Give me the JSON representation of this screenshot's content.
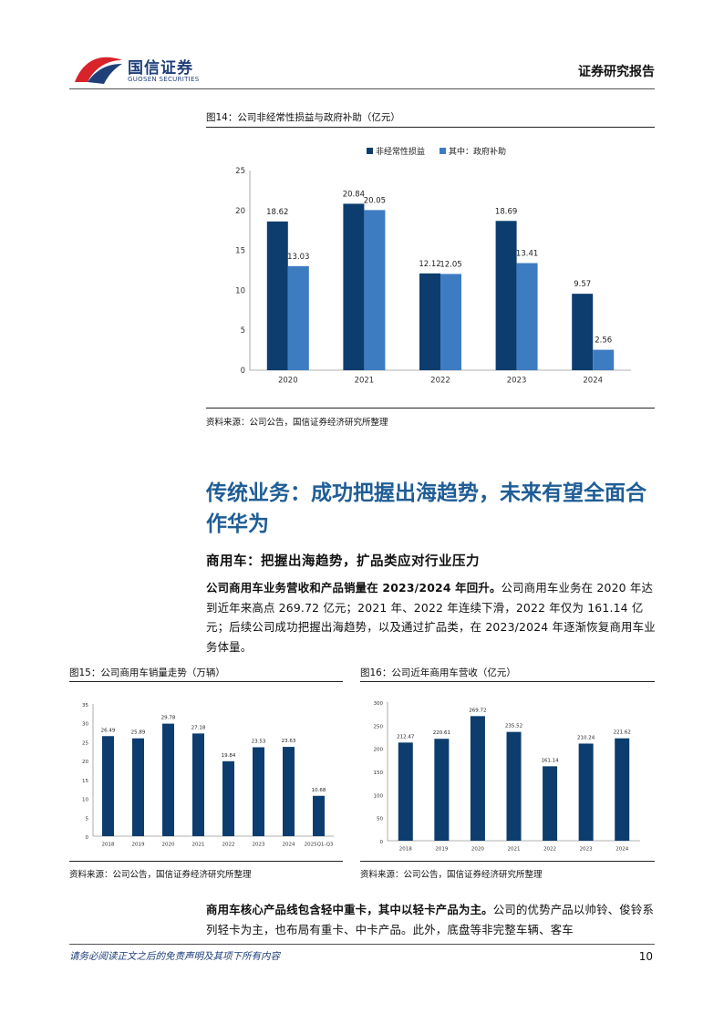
{
  "header": {
    "logo_cn": "国信证券",
    "logo_en": "GUOSEN SECURITIES",
    "report_type": "证券研究报告"
  },
  "fig14": {
    "title": "图14：公司非经常性损益与政府补助（亿元）",
    "source": "资料来源：公司公告，国信证券经济研究所整理"
  },
  "section": {
    "title": "传统业务：成功把握出海趋势，未来有望全面合作华为",
    "subhead": "商用车：把握出海趋势，扩品类应对行业压力"
  },
  "para1": {
    "lead": "公司商用车业务营收和产品销量在 2023/2024 年回升。",
    "body": "公司商用车业务在 2020 年达到近年来高点 269.72 亿元；2021 年、2022 年连续下滑，2022 年仅为 161.14 亿元；后续公司成功把握出海趋势，以及通过扩品类，在 2023/2024 年逐渐恢复商用车业务体量。"
  },
  "fig15": {
    "title": "图15：公司商用车销量走势（万辆）",
    "source": "资料来源：公司公告，国信证券经济研究所整理"
  },
  "fig16": {
    "title": "图16：公司近年商用车营收（亿元）",
    "source": "资料来源：公司公告，国信证券经济研究所整理"
  },
  "para2": {
    "lead": "商用车核心产品线包含轻中重卡，其中以轻卡产品为主。",
    "body": "公司的优势产品以帅铃、俊铃系列轻卡为主，也布局有重卡、中卡产品。此外，底盘等非完整车辆、客车"
  },
  "footer": {
    "disclaimer": "请务必阅读正文之后的免责声明及其项下所有内容",
    "page": "10"
  },
  "colors": {
    "dark": "#0c3d6e",
    "light": "#3e7cc2",
    "accent": "#1f5d96"
  },
  "chart_data": [
    {
      "id": "fig14",
      "type": "bar",
      "title": "公司非经常性损益与政府补助（亿元）",
      "categories": [
        "2020",
        "2021",
        "2022",
        "2023",
        "2024"
      ],
      "series": [
        {
          "name": "非经常性损益",
          "values": [
            18.62,
            20.84,
            12.12,
            18.69,
            9.57
          ]
        },
        {
          "name": "其中：政府补助",
          "values": [
            13.03,
            20.05,
            12.05,
            13.41,
            2.56
          ]
        }
      ],
      "ylim": [
        0,
        25
      ],
      "yticks": [
        0,
        5,
        10,
        15,
        20,
        25
      ],
      "legend": "top-center"
    },
    {
      "id": "fig15",
      "type": "bar",
      "title": "公司商用车销量走势（万辆）",
      "categories": [
        "2018",
        "2019",
        "2020",
        "2021",
        "2022",
        "2023",
        "2024",
        "2025Q1-Q3"
      ],
      "values": [
        26.49,
        25.89,
        29.78,
        27.18,
        19.84,
        23.53,
        23.63,
        10.68
      ],
      "ylim": [
        0,
        35
      ],
      "yticks": [
        0,
        5,
        10,
        15,
        20,
        25,
        30,
        35
      ]
    },
    {
      "id": "fig16",
      "type": "bar",
      "title": "公司近年商用车营收（亿元）",
      "categories": [
        "2018",
        "2019",
        "2020",
        "2021",
        "2022",
        "2023",
        "2024"
      ],
      "values": [
        212.47,
        220.61,
        269.72,
        235.52,
        161.14,
        210.24,
        221.62
      ],
      "ylim": [
        0,
        300
      ],
      "yticks": [
        0,
        50,
        100,
        150,
        200,
        250,
        300
      ]
    }
  ]
}
